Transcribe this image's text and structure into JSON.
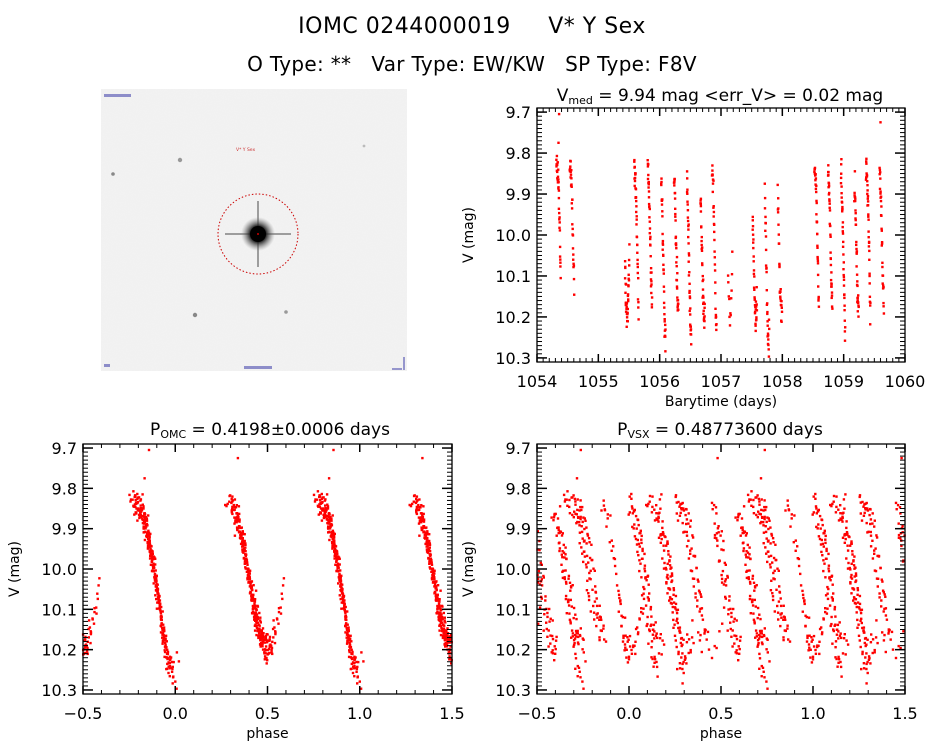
{
  "header": {
    "object_id": "IOMC 0244000019",
    "object_name": "V* Y Sex",
    "o_type_label": "O Type:",
    "o_type": "**",
    "var_type_label": "Var Type:",
    "var_type": "EW/KW",
    "sp_type_label": "SP Type:",
    "sp_type": "F8V"
  },
  "sky_image": {
    "target_marker": "circle",
    "marker_color": "#cc0000",
    "labels": [
      "V* Y Sex"
    ]
  },
  "colors": {
    "points": "#ff0000",
    "axes": "#000000",
    "background": "#ffffff"
  },
  "chart_data": [
    {
      "id": "time-series",
      "type": "scatter",
      "title_main": "V",
      "title_sub": "med",
      "title_rest": " = 9.94 mag <err_V> = 0.02 mag",
      "xlabel": "Barytime (days)",
      "ylabel": "V (mag)",
      "xlim": [
        1054,
        1060
      ],
      "ylim": [
        10.31,
        9.69
      ],
      "y_inverted": true,
      "xticks": [
        1054,
        1055,
        1056,
        1057,
        1058,
        1059,
        1060
      ],
      "xtick_labels": [
        "1054",
        "1055",
        "1056",
        "1057",
        "1058",
        "1059",
        "1060"
      ],
      "x_minor_step": 0.1,
      "yticks": [
        9.7,
        9.8,
        9.9,
        10.0,
        10.1,
        10.2,
        10.3
      ],
      "ytick_labels": [
        "9.7",
        "9.8",
        "9.9",
        "10.0",
        "10.1",
        "10.2",
        "10.3"
      ],
      "y_minor_step": 0.01,
      "grid": false,
      "median_V": 9.94,
      "mean_err_V": 0.02
    },
    {
      "id": "phase-omc",
      "type": "scatter",
      "title_main": "P",
      "title_sub": "OMC",
      "title_rest": " = 0.4198±0.0006 days",
      "period_days": 0.4198,
      "period_err_days": 0.0006,
      "xlabel": "phase",
      "ylabel": "V (mag)",
      "xlim": [
        -0.5,
        1.5
      ],
      "ylim": [
        10.31,
        9.69
      ],
      "y_inverted": true,
      "xticks": [
        -0.5,
        0.0,
        0.5,
        1.0,
        1.5
      ],
      "xtick_labels": [
        "−0.5",
        "0.0",
        "0.5",
        "1.0",
        "1.5"
      ],
      "x_minor_step": 0.1,
      "yticks": [
        9.7,
        9.8,
        9.9,
        10.0,
        10.1,
        10.2,
        10.3
      ],
      "ytick_labels": [
        "9.7",
        "9.8",
        "9.9",
        "10.0",
        "10.1",
        "10.2",
        "10.3"
      ],
      "y_minor_step": 0.01,
      "grid": false
    },
    {
      "id": "phase-vsx",
      "type": "scatter",
      "title_main": "P",
      "title_sub": "VSX",
      "title_rest": " = 0.48773600 days",
      "period_days": 0.487736,
      "xlabel": "phase",
      "ylabel": "V (mag)",
      "xlim": [
        -0.5,
        1.5
      ],
      "ylim": [
        10.31,
        9.69
      ],
      "y_inverted": true,
      "xticks": [
        -0.5,
        0.0,
        0.5,
        1.0,
        1.5
      ],
      "xtick_labels": [
        "−0.5",
        "0.0",
        "0.5",
        "1.0",
        "1.5"
      ],
      "x_minor_step": 0.1,
      "yticks": [
        9.7,
        9.8,
        9.9,
        10.0,
        10.1,
        10.2,
        10.3
      ],
      "ytick_labels": [
        "9.7",
        "9.8",
        "9.9",
        "10.0",
        "10.1",
        "10.2",
        "10.3"
      ],
      "y_minor_step": 0.01,
      "grid": false
    }
  ],
  "light_curve_model": {
    "epoch_min": 1054.0,
    "period_days": 0.4198,
    "max_V": 9.835,
    "primary_min_V": 10.255,
    "secondary_min_V": 10.195,
    "scatter_mag": 0.018,
    "observation_strips": [
      {
        "t": 1054.35,
        "n": 34
      },
      {
        "t": 1054.57,
        "n": 30
      },
      {
        "t": 1055.47,
        "n": 36
      },
      {
        "t": 1055.62,
        "n": 36
      },
      {
        "t": 1055.84,
        "n": 36
      },
      {
        "t": 1056.06,
        "n": 36
      },
      {
        "t": 1056.27,
        "n": 36
      },
      {
        "t": 1056.48,
        "n": 36
      },
      {
        "t": 1056.7,
        "n": 36
      },
      {
        "t": 1056.89,
        "n": 30
      },
      {
        "t": 1057.15,
        "n": 12
      },
      {
        "t": 1057.55,
        "n": 34
      },
      {
        "t": 1057.75,
        "n": 30
      },
      {
        "t": 1057.96,
        "n": 26
      },
      {
        "t": 1058.56,
        "n": 34
      },
      {
        "t": 1058.78,
        "n": 36
      },
      {
        "t": 1058.99,
        "n": 36
      },
      {
        "t": 1059.21,
        "n": 36
      },
      {
        "t": 1059.4,
        "n": 36
      },
      {
        "t": 1059.62,
        "n": 30
      }
    ],
    "strip_halfwidth_days": 0.035,
    "outliers": [
      {
        "t": 1054.36,
        "V": 9.705
      },
      {
        "t": 1059.6,
        "V": 9.725
      },
      {
        "t": 1054.35,
        "V": 9.775
      }
    ]
  }
}
